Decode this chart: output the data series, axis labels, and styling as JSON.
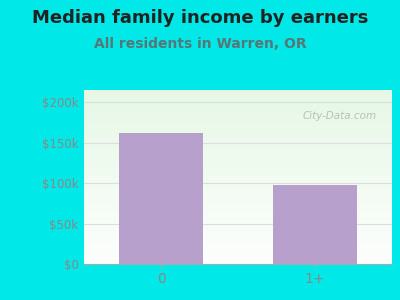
{
  "title": "Median family income by earners",
  "subtitle": "All residents in Warren, OR",
  "categories": [
    "0",
    "1+"
  ],
  "values": [
    162000,
    97000
  ],
  "bar_color": "#b8a0cc",
  "background_color": "#00e8e8",
  "yticks": [
    0,
    50000,
    100000,
    150000,
    200000
  ],
  "ytick_labels": [
    "$0",
    "$50k",
    "$100k",
    "$150k",
    "$200k"
  ],
  "ylim": [
    0,
    215000
  ],
  "title_fontsize": 13,
  "subtitle_fontsize": 10,
  "tick_label_color": "#888888",
  "title_color": "#222222",
  "subtitle_color": "#557777",
  "watermark": "City-Data.com",
  "gridline_color": "#dddddd"
}
